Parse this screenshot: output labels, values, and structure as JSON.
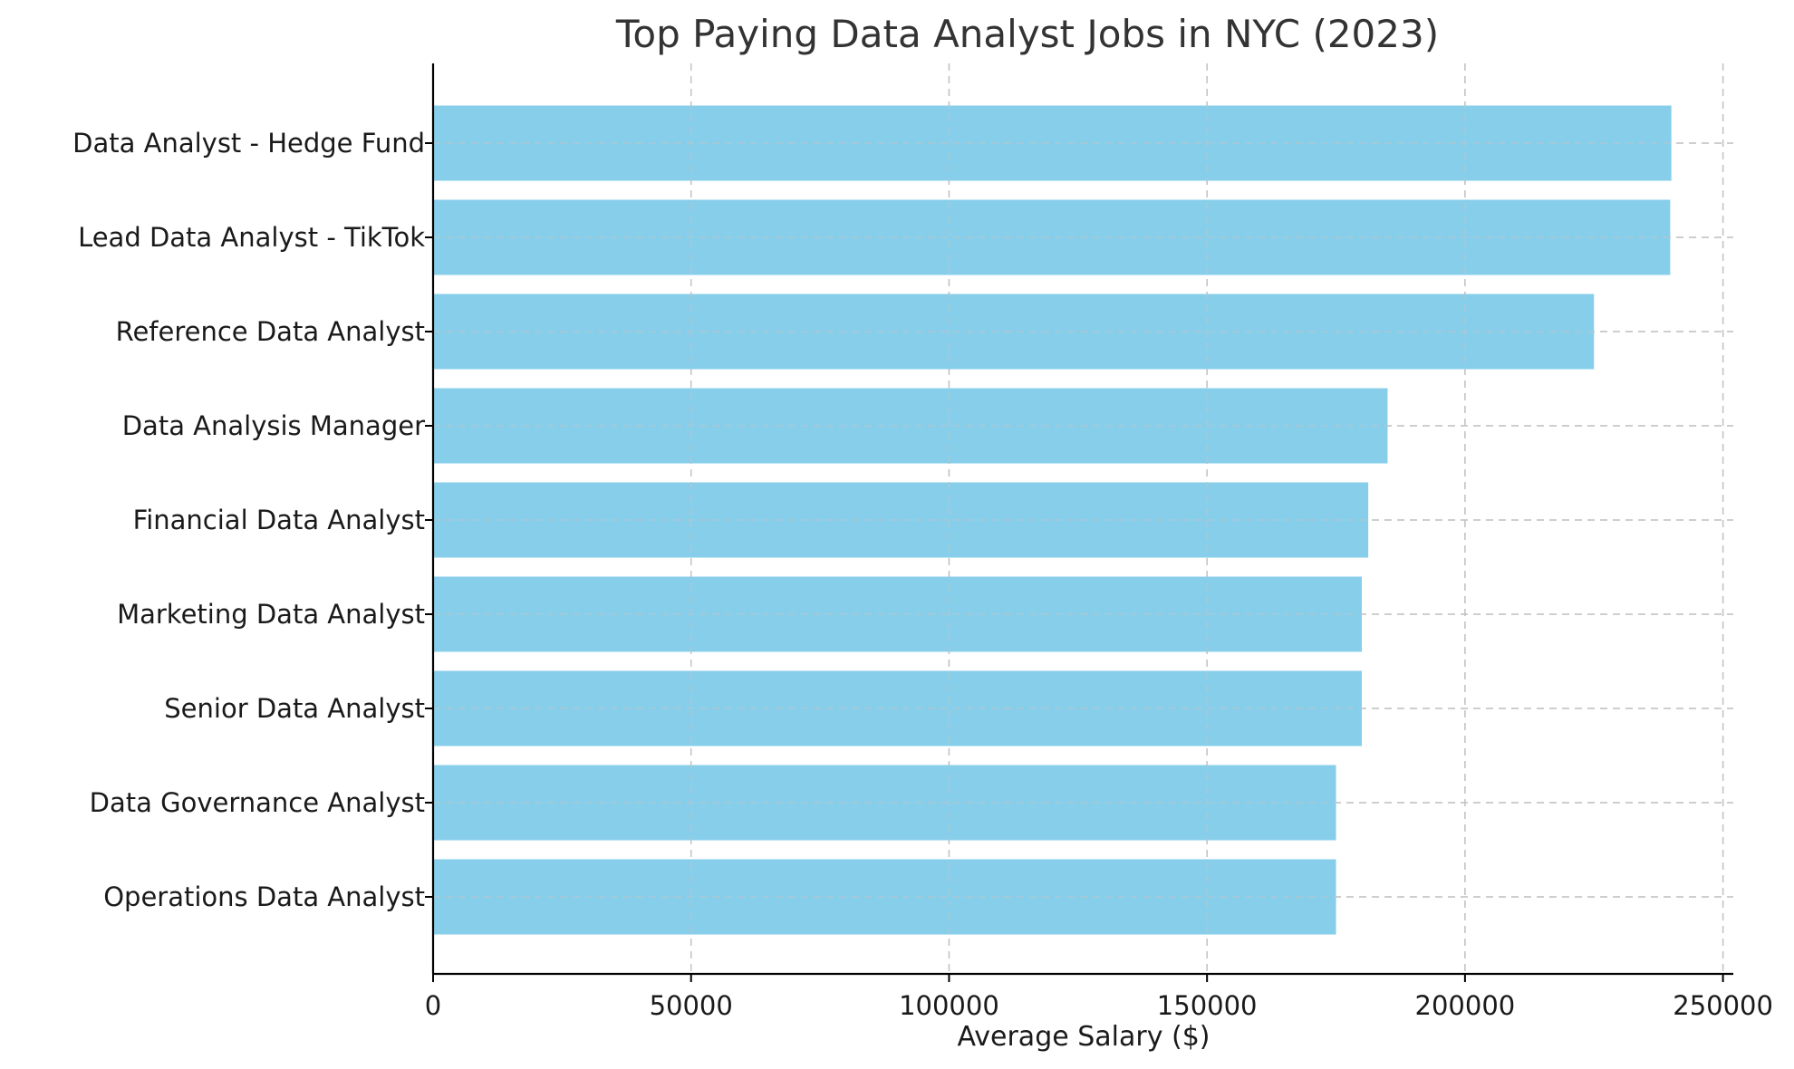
{
  "chart_data": {
    "type": "bar",
    "orientation": "horizontal",
    "title": "Top Paying Data Analyst Jobs in NYC (2023)",
    "xlabel": "Average Salary ($)",
    "ylabel": "",
    "categories": [
      "Data Analyst - Hedge Fund",
      "Lead Data Analyst - TikTok",
      "Reference Data Analyst",
      "Data Analysis Manager",
      "Financial Data Analyst",
      "Marketing Data Analyst",
      "Senior Data Analyst",
      "Data Governance Analyst",
      "Operations Data Analyst"
    ],
    "values": [
      240000,
      239777,
      225000,
      185000,
      181250,
      180000,
      180000,
      175000,
      175000
    ],
    "xlim": [
      0,
      252000
    ],
    "xticks": [
      0,
      50000,
      100000,
      150000,
      200000,
      250000
    ],
    "xtick_labels": [
      "0",
      "50000",
      "100000",
      "150000",
      "200000",
      "250000"
    ],
    "grid": true,
    "bar_color": "#87CEEB",
    "legend": "none"
  }
}
